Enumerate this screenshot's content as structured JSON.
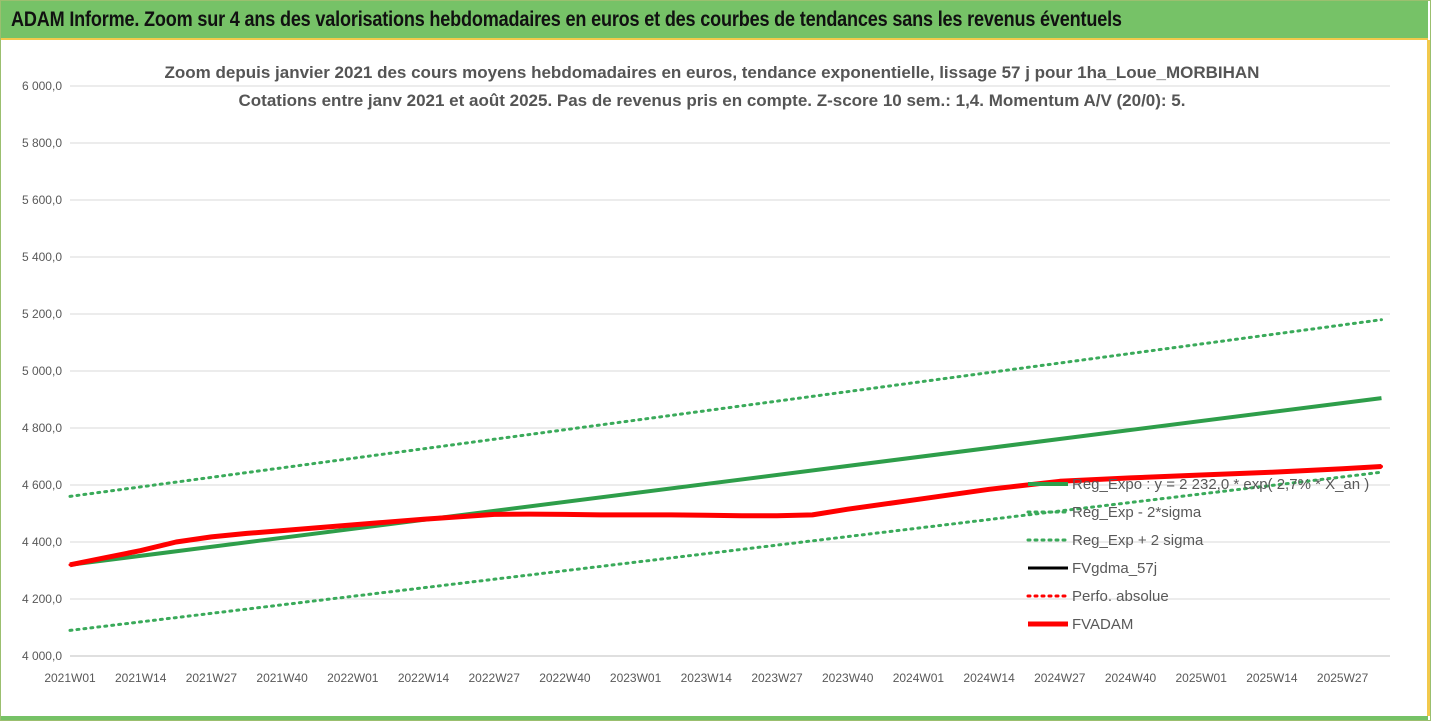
{
  "banner": {
    "text": "ADAM Informe. Zoom sur 4 ans des valorisations hebdomadaires en euros et des courbes de tendances sans les revenus éventuels"
  },
  "colors": {
    "banner_bg": "#76c267",
    "trend_green": "#2e9e4a",
    "band_green": "#3aaa5a",
    "fvgdma": "#000000",
    "perfo": "#ff0000",
    "fvadam": "#ff0000",
    "grid": "#d9d9d9"
  },
  "chart_data": {
    "type": "line",
    "title": [
      "Zoom depuis janvier 2021 des cours moyens hebdomadaires en euros, tendance exponentielle, lissage 57 j pour 1ha_Loue_MORBIHAN",
      "Cotations entre janv 2021 et août 2025.  Pas de revenus pris en compte. Z-score 10 sem.: 1,4. Momentum A/V (20/0): 5."
    ],
    "x_ticks": [
      "2021W01",
      "2021W14",
      "2021W27",
      "2021W40",
      "2022W01",
      "2022W14",
      "2022W27",
      "2022W40",
      "2023W01",
      "2023W14",
      "2023W27",
      "2023W40",
      "2024W01",
      "2024W14",
      "2024W27",
      "2024W40",
      "2025W01",
      "2025W14",
      "2025W27"
    ],
    "y_ticks": [
      "4 000,0",
      "4 200,0",
      "4 400,0",
      "4 600,0",
      "4 800,0",
      "5 000,0",
      "5 200,0",
      "5 400,0",
      "5 600,0",
      "5 800,0",
      "6 000,0"
    ],
    "ylim": [
      4000,
      6000
    ],
    "x_last": 18.55,
    "grid": "horizontal",
    "legend_position": "right",
    "series": [
      {
        "name": "Reg_Expo : y = 2 232,0 * exp( 2,7% * X_an )",
        "style": "solid",
        "color": "#2e9e4a",
        "width": 4,
        "x": [
          0,
          18.55
        ],
        "y": [
          4320,
          4905
        ]
      },
      {
        "name": "Reg_Exp - 2*sigma",
        "style": "dotted",
        "color": "#3aaa5a",
        "width": 3,
        "x": [
          0,
          18.55
        ],
        "y": [
          4090,
          4645
        ]
      },
      {
        "name": "Reg_Exp + 2 sigma",
        "style": "dotted",
        "color": "#3aaa5a",
        "width": 3,
        "x": [
          0,
          18.55
        ],
        "y": [
          4560,
          5180
        ]
      },
      {
        "name": "FVgdma_57j",
        "style": "solid",
        "color": "#000000",
        "width": 3,
        "x": [
          0,
          0.5,
          1,
          1.5,
          2,
          2.5,
          3,
          4,
          5,
          6,
          6.5,
          7,
          7.5,
          8,
          8.5,
          9,
          9.5,
          10,
          10.5,
          11,
          12,
          13,
          14,
          15,
          16,
          17,
          18,
          18.55
        ],
        "y": [
          4320,
          4345,
          4370,
          4400,
          4420,
          4430,
          4440,
          4460,
          4480,
          4497,
          4498,
          4497,
          4495,
          4495,
          4495,
          4494,
          4492,
          4492,
          4496,
          4515,
          4550,
          4585,
          4613,
          4625,
          4635,
          4645,
          4657,
          4665
        ]
      },
      {
        "name": "Perfo. absolue",
        "style": "dotted",
        "color": "#ff0000",
        "width": 3,
        "x": [
          0,
          0.5,
          1,
          1.5,
          2,
          2.5,
          3,
          4,
          5,
          6,
          6.5,
          7,
          7.5,
          8,
          8.5,
          9,
          9.5,
          10,
          10.5,
          11,
          12,
          13,
          14,
          15,
          16,
          17,
          18,
          18.55
        ],
        "y": [
          4320,
          4345,
          4370,
          4400,
          4418,
          4430,
          4440,
          4460,
          4480,
          4497,
          4498,
          4497,
          4495,
          4495,
          4495,
          4494,
          4492,
          4492,
          4495,
          4515,
          4550,
          4585,
          4613,
          4625,
          4635,
          4645,
          4657,
          4665
        ]
      },
      {
        "name": "FVADAM",
        "style": "solid",
        "color": "#ff0000",
        "width": 5,
        "x": [
          0,
          0.5,
          1,
          1.5,
          2,
          2.5,
          3,
          4,
          5,
          6,
          6.5,
          7,
          7.5,
          8,
          8.5,
          9,
          9.5,
          10,
          10.5,
          11,
          12,
          13,
          14,
          15,
          16,
          17,
          18,
          18.55
        ],
        "y": [
          4320,
          4345,
          4370,
          4400,
          4418,
          4430,
          4440,
          4460,
          4480,
          4497,
          4498,
          4497,
          4495,
          4495,
          4495,
          4494,
          4492,
          4492,
          4495,
          4515,
          4550,
          4585,
          4613,
          4625,
          4635,
          4645,
          4657,
          4665
        ]
      }
    ]
  }
}
